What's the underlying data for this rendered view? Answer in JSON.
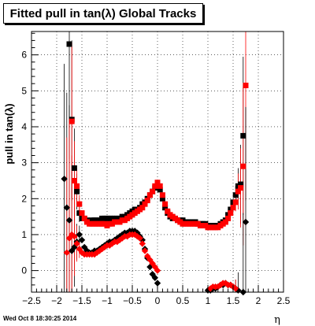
{
  "chart_data": {
    "type": "scatter",
    "title": "Fitted pull in tan(λ)  Global Tracks",
    "xlabel": "η",
    "ylabel": "pull in tan(λ)",
    "xlim": [
      -2.5,
      2.5
    ],
    "ylim": [
      -0.6,
      6.65
    ],
    "x_ticks": [
      -2.5,
      -2,
      -1.5,
      -1,
      -0.5,
      0,
      0.5,
      1,
      1.5,
      2,
      2.5
    ],
    "y_ticks": [
      0,
      1,
      2,
      3,
      4,
      5,
      6
    ],
    "grid": true,
    "legend": "none",
    "series": [
      {
        "color": "#000000",
        "marker": "square",
        "points": [
          [
            -1.75,
            6.3
          ],
          [
            -1.7,
            4.2
          ],
          [
            -1.65,
            2.85
          ],
          [
            -1.6,
            2.2
          ],
          [
            -1.55,
            1.6
          ],
          [
            -1.5,
            1.45
          ],
          [
            -1.45,
            1.45
          ],
          [
            -1.4,
            1.4
          ],
          [
            -1.35,
            1.35
          ],
          [
            -1.3,
            1.4
          ],
          [
            -1.25,
            1.4
          ],
          [
            -1.2,
            1.4
          ],
          [
            -1.15,
            1.4
          ],
          [
            -1.1,
            1.45
          ],
          [
            -1.05,
            1.45
          ],
          [
            -1.0,
            1.45
          ],
          [
            -0.95,
            1.45
          ],
          [
            -0.9,
            1.45
          ],
          [
            -0.85,
            1.45
          ],
          [
            -0.8,
            1.45
          ],
          [
            -0.75,
            1.45
          ],
          [
            -0.7,
            1.5
          ],
          [
            -0.65,
            1.5
          ],
          [
            -0.6,
            1.55
          ],
          [
            -0.55,
            1.6
          ],
          [
            -0.5,
            1.65
          ],
          [
            -0.45,
            1.7
          ],
          [
            -0.4,
            1.7
          ],
          [
            -0.35,
            1.75
          ],
          [
            -0.3,
            1.85
          ],
          [
            -0.25,
            1.9
          ],
          [
            -0.2,
            2.0
          ],
          [
            -0.15,
            2.1
          ],
          [
            -0.1,
            2.2
          ],
          [
            -0.05,
            2.3
          ],
          [
            0.0,
            2.35
          ],
          [
            0.05,
            2.25
          ],
          [
            0.1,
            2.0
          ],
          [
            0.15,
            1.75
          ],
          [
            0.2,
            1.6
          ],
          [
            0.25,
            1.5
          ],
          [
            0.3,
            1.45
          ],
          [
            0.35,
            1.45
          ],
          [
            0.4,
            1.4
          ],
          [
            0.45,
            1.4
          ],
          [
            0.5,
            1.4
          ],
          [
            0.55,
            1.35
          ],
          [
            0.6,
            1.35
          ],
          [
            0.65,
            1.35
          ],
          [
            0.7,
            1.35
          ],
          [
            0.75,
            1.35
          ],
          [
            0.8,
            1.3
          ],
          [
            0.85,
            1.3
          ],
          [
            0.9,
            1.3
          ],
          [
            0.95,
            1.3
          ],
          [
            1.0,
            1.25
          ],
          [
            1.05,
            1.25
          ],
          [
            1.1,
            1.25
          ],
          [
            1.15,
            1.25
          ],
          [
            1.2,
            1.25
          ],
          [
            1.25,
            1.3
          ],
          [
            1.3,
            1.35
          ],
          [
            1.35,
            1.4
          ],
          [
            1.4,
            1.55
          ],
          [
            1.45,
            1.7
          ],
          [
            1.5,
            1.9
          ],
          [
            1.55,
            2.1
          ],
          [
            1.6,
            2.35
          ],
          [
            1.65,
            2.4
          ],
          [
            1.7,
            3.75
          ]
        ]
      },
      {
        "color": "#ff0000",
        "marker": "square",
        "points": [
          [
            -1.7,
            4.15
          ],
          [
            -1.65,
            2.5
          ],
          [
            -1.6,
            2.35
          ],
          [
            -1.55,
            1.85
          ],
          [
            -1.5,
            1.6
          ],
          [
            -1.45,
            1.45
          ],
          [
            -1.4,
            1.35
          ],
          [
            -1.35,
            1.3
          ],
          [
            -1.3,
            1.3
          ],
          [
            -1.25,
            1.3
          ],
          [
            -1.2,
            1.3
          ],
          [
            -1.15,
            1.3
          ],
          [
            -1.1,
            1.3
          ],
          [
            -1.05,
            1.3
          ],
          [
            -1.0,
            1.25
          ],
          [
            -0.95,
            1.3
          ],
          [
            -0.9,
            1.3
          ],
          [
            -0.85,
            1.35
          ],
          [
            -0.8,
            1.35
          ],
          [
            -0.75,
            1.35
          ],
          [
            -0.7,
            1.4
          ],
          [
            -0.65,
            1.4
          ],
          [
            -0.6,
            1.45
          ],
          [
            -0.55,
            1.5
          ],
          [
            -0.5,
            1.55
          ],
          [
            -0.45,
            1.6
          ],
          [
            -0.4,
            1.65
          ],
          [
            -0.35,
            1.7
          ],
          [
            -0.3,
            1.75
          ],
          [
            -0.25,
            1.85
          ],
          [
            -0.2,
            1.95
          ],
          [
            -0.15,
            2.1
          ],
          [
            -0.1,
            2.2
          ],
          [
            -0.05,
            2.35
          ],
          [
            0.0,
            2.45
          ],
          [
            0.05,
            2.35
          ],
          [
            0.1,
            2.1
          ],
          [
            0.15,
            1.85
          ],
          [
            0.2,
            1.65
          ],
          [
            0.25,
            1.55
          ],
          [
            0.3,
            1.5
          ],
          [
            0.35,
            1.45
          ],
          [
            0.4,
            1.4
          ],
          [
            0.45,
            1.35
          ],
          [
            0.5,
            1.3
          ],
          [
            0.55,
            1.3
          ],
          [
            0.6,
            1.3
          ],
          [
            0.65,
            1.3
          ],
          [
            0.7,
            1.3
          ],
          [
            0.75,
            1.3
          ],
          [
            0.8,
            1.3
          ],
          [
            0.85,
            1.25
          ],
          [
            0.9,
            1.25
          ],
          [
            0.95,
            1.25
          ],
          [
            1.0,
            1.2
          ],
          [
            1.05,
            1.2
          ],
          [
            1.1,
            1.2
          ],
          [
            1.15,
            1.2
          ],
          [
            1.2,
            1.2
          ],
          [
            1.25,
            1.25
          ],
          [
            1.3,
            1.3
          ],
          [
            1.35,
            1.35
          ],
          [
            1.4,
            1.45
          ],
          [
            1.45,
            1.6
          ],
          [
            1.5,
            1.75
          ],
          [
            1.55,
            1.9
          ],
          [
            1.6,
            2.2
          ],
          [
            1.65,
            2.3
          ],
          [
            1.7,
            2.9
          ],
          [
            1.75,
            5.15
          ]
        ]
      },
      {
        "color": "#000000",
        "marker": "diamond",
        "points": [
          [
            -1.85,
            2.55
          ],
          [
            -1.8,
            1.75
          ],
          [
            -1.75,
            1.4
          ],
          [
            -1.7,
            0.55
          ],
          [
            -1.65,
            0.65
          ],
          [
            -1.6,
            0.8
          ],
          [
            -1.55,
            1.0
          ],
          [
            -1.5,
            0.85
          ],
          [
            -1.45,
            0.65
          ],
          [
            -1.4,
            0.55
          ],
          [
            -1.35,
            0.5
          ],
          [
            -1.3,
            0.5
          ],
          [
            -1.25,
            0.55
          ],
          [
            -1.2,
            0.55
          ],
          [
            -1.15,
            0.6
          ],
          [
            -1.1,
            0.65
          ],
          [
            -1.05,
            0.7
          ],
          [
            -1.0,
            0.75
          ],
          [
            -0.95,
            0.8
          ],
          [
            -0.9,
            0.8
          ],
          [
            -0.85,
            0.85
          ],
          [
            -0.8,
            0.9
          ],
          [
            -0.75,
            0.95
          ],
          [
            -0.7,
            1.0
          ],
          [
            -0.65,
            1.05
          ],
          [
            -0.6,
            1.05
          ],
          [
            -0.55,
            1.1
          ],
          [
            -0.5,
            1.1
          ],
          [
            -0.45,
            1.1
          ],
          [
            -0.4,
            1.05
          ],
          [
            -0.35,
            0.95
          ],
          [
            -0.3,
            0.85
          ],
          [
            -0.25,
            0.6
          ],
          [
            -0.2,
            0.35
          ],
          [
            -0.15,
            0.1
          ],
          [
            -0.1,
            -0.1
          ],
          [
            -0.05,
            -0.2
          ],
          [
            0.0,
            -0.35
          ],
          [
            1.0,
            -0.55
          ],
          [
            1.05,
            -0.55
          ],
          [
            1.1,
            -0.5
          ],
          [
            1.15,
            -0.5
          ],
          [
            1.2,
            -0.45
          ],
          [
            1.25,
            -0.4
          ],
          [
            1.3,
            -0.4
          ],
          [
            1.35,
            -0.35
          ],
          [
            1.4,
            -0.4
          ],
          [
            1.45,
            -0.4
          ],
          [
            1.5,
            -0.45
          ],
          [
            1.55,
            -0.5
          ],
          [
            1.6,
            -0.55
          ],
          [
            1.7,
            -0.6
          ],
          [
            1.75,
            1.35
          ]
        ]
      },
      {
        "color": "#ff0000",
        "marker": "diamond",
        "points": [
          [
            -1.8,
            0.5
          ],
          [
            -1.75,
            0.9
          ],
          [
            -1.7,
            1.0
          ],
          [
            -1.65,
            0.95
          ],
          [
            -1.6,
            0.75
          ],
          [
            -1.55,
            0.6
          ],
          [
            -1.5,
            0.5
          ],
          [
            -1.45,
            0.45
          ],
          [
            -1.4,
            0.45
          ],
          [
            -1.35,
            0.45
          ],
          [
            -1.3,
            0.45
          ],
          [
            -1.25,
            0.45
          ],
          [
            -1.2,
            0.5
          ],
          [
            -1.15,
            0.55
          ],
          [
            -1.1,
            0.6
          ],
          [
            -1.05,
            0.65
          ],
          [
            -1.0,
            0.7
          ],
          [
            -0.95,
            0.7
          ],
          [
            -0.9,
            0.75
          ],
          [
            -0.85,
            0.8
          ],
          [
            -0.8,
            0.8
          ],
          [
            -0.75,
            0.85
          ],
          [
            -0.7,
            0.9
          ],
          [
            -0.65,
            0.95
          ],
          [
            -0.6,
            0.95
          ],
          [
            -0.55,
            1.0
          ],
          [
            -0.5,
            1.0
          ],
          [
            -0.45,
            1.0
          ],
          [
            -0.4,
            0.95
          ],
          [
            -0.35,
            0.9
          ],
          [
            -0.3,
            0.75
          ],
          [
            -0.25,
            0.55
          ],
          [
            -0.2,
            0.4
          ],
          [
            -0.15,
            0.3
          ],
          [
            -0.1,
            0.2
          ],
          [
            -0.05,
            0.1
          ],
          [
            0.0,
            0.0
          ],
          [
            1.05,
            -0.5
          ],
          [
            1.1,
            -0.45
          ],
          [
            1.15,
            -0.45
          ],
          [
            1.2,
            -0.45
          ],
          [
            1.25,
            -0.4
          ],
          [
            1.3,
            -0.35
          ],
          [
            1.35,
            -0.35
          ],
          [
            1.4,
            -0.4
          ],
          [
            1.45,
            -0.4
          ],
          [
            1.5,
            -0.45
          ],
          [
            1.55,
            -0.5
          ]
        ]
      }
    ]
  },
  "footer": "Wed Oct  8 18:30:25 2014"
}
